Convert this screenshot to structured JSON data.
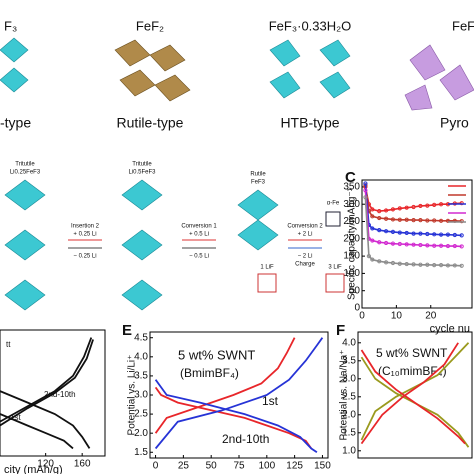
{
  "structures": [
    {
      "formula": "F₃",
      "type": "-type"
    },
    {
      "formula": "FeF₂",
      "type": "Rutile-type"
    },
    {
      "formula": "FeF₃·0.33H₂O",
      "type": "HTB-type"
    },
    {
      "formula": "FeF",
      "type": "Pyro"
    }
  ],
  "scheme": {
    "phases": [
      {
        "name": "Tritutile",
        "formula": "Li0.25FeF3"
      },
      {
        "name": "Tritutile",
        "formula": "Li0.5FeF3"
      },
      {
        "name": "Rutile",
        "formula": "FeF3"
      }
    ],
    "steps": [
      {
        "name": "Insertion 2",
        "forward": "+ 0.25 Li",
        "back": "− 0.25 Li"
      },
      {
        "name": "Conversion 1",
        "forward": "+ 0.5 Li",
        "back": "− 0.5 Li"
      },
      {
        "name": "Conversion 2",
        "forward": "+ 2 Li",
        "back": "− 2 Li",
        "note": "Charge"
      }
    ],
    "fe": "α-Fe",
    "lif": [
      "1 LiF",
      "3 LiF"
    ]
  },
  "chart_data": [
    {
      "type": "line",
      "label": "C",
      "y_label": "Specific capacity/mAhg⁻¹",
      "x_label": "cycle nu",
      "xlim": [
        0,
        32
      ],
      "xticks": [
        0,
        10,
        20
      ],
      "ylim": [
        0,
        370
      ],
      "yticks": [
        0,
        50,
        100,
        150,
        200,
        250,
        300,
        350
      ],
      "x": [
        1,
        2,
        3,
        5,
        7,
        9,
        11,
        13,
        15,
        17,
        19,
        21,
        23,
        25,
        27,
        29
      ],
      "series": [
        {
          "color": "#e8262a",
          "values": [
            350,
            300,
            285,
            280,
            282,
            285,
            288,
            290,
            292,
            295,
            296,
            298,
            300,
            300,
            302,
            303
          ]
        },
        {
          "color": "#c0392b",
          "values": [
            355,
            280,
            265,
            260,
            258,
            256,
            255,
            255,
            254,
            254,
            253,
            253,
            252,
            252,
            252,
            251
          ]
        },
        {
          "color": "#2633d6",
          "values": [
            360,
            240,
            230,
            225,
            222,
            220,
            218,
            217,
            215,
            215,
            214,
            213,
            212,
            212,
            211,
            210
          ]
        },
        {
          "color": "#d22ad0",
          "values": [
            340,
            200,
            195,
            190,
            188,
            186,
            185,
            184,
            183,
            182,
            181,
            180,
            180,
            179,
            179,
            178
          ]
        },
        {
          "color": "#8c8c8c",
          "values": [
            320,
            150,
            140,
            135,
            132,
            130,
            128,
            127,
            126,
            125,
            125,
            124,
            124,
            123,
            123,
            122
          ]
        }
      ]
    },
    {
      "type": "line",
      "x_label": "city (mAh/g)",
      "xlim": [
        70,
        185
      ],
      "xticks": [
        120,
        160
      ],
      "ylim": [
        1.3,
        4.6
      ],
      "annotations": [
        "tt",
        "2nd-10th",
        "1st"
      ],
      "series": [
        {
          "color": "#111111",
          "x": [
            70,
            100,
            130,
            150,
            160,
            168
          ],
          "values": [
            3.0,
            2.7,
            2.4,
            2.1,
            1.8,
            1.5
          ]
        },
        {
          "color": "#111111",
          "x": [
            70,
            100,
            130,
            150,
            162,
            170
          ],
          "values": [
            2.2,
            2.6,
            3.0,
            3.4,
            3.9,
            4.4
          ]
        },
        {
          "color": "#111111",
          "x": [
            70,
            100,
            130,
            152,
            165,
            172
          ],
          "values": [
            2.1,
            2.55,
            2.95,
            3.35,
            3.85,
            4.35
          ]
        },
        {
          "color": "#111111",
          "x": [
            70,
            100,
            120,
            140,
            150
          ],
          "values": [
            2.4,
            2.1,
            1.9,
            1.7,
            1.5
          ]
        }
      ]
    },
    {
      "type": "line",
      "label": "E",
      "y_label": "Potential vs. Li/Li⁺",
      "xlim": [
        -5,
        155
      ],
      "xticks": [
        0,
        25,
        50,
        75,
        100,
        125,
        150
      ],
      "ylim": [
        1.35,
        4.65
      ],
      "yticks": [
        1.5,
        {
          "value": 2,
          "label": "2.0"
        },
        2.5,
        {
          "value": 3,
          "label": "3.0"
        },
        3.5,
        {
          "value": 4,
          "label": "4.0"
        },
        4.5
      ],
      "annotations": [
        "5 wt% SWNT",
        "(BmimBF₄)",
        "1st",
        "2nd-10th"
      ],
      "series": [
        {
          "color": "#e8262a",
          "x": [
            0,
            5,
            20,
            50,
            80,
            100,
            120,
            135,
            140
          ],
          "values": [
            3.2,
            3.0,
            2.8,
            2.6,
            2.4,
            2.2,
            2.0,
            1.8,
            1.6
          ]
        },
        {
          "color": "#e8262a",
          "x": [
            0,
            10,
            40,
            70,
            95,
            110,
            118,
            125
          ],
          "values": [
            2.0,
            2.4,
            2.7,
            3.0,
            3.3,
            3.7,
            4.1,
            4.5
          ]
        },
        {
          "color": "#2633d6",
          "x": [
            0,
            10,
            40,
            80,
            110,
            130,
            140,
            145
          ],
          "values": [
            3.4,
            3.0,
            2.8,
            2.5,
            2.2,
            1.9,
            1.6,
            1.5
          ]
        },
        {
          "color": "#2633d6",
          "x": [
            0,
            20,
            60,
            100,
            120,
            135,
            145,
            150
          ],
          "values": [
            1.6,
            2.3,
            2.6,
            3.0,
            3.4,
            3.9,
            4.3,
            4.5
          ]
        }
      ]
    },
    {
      "type": "line",
      "label": "F",
      "y_label": "Potential vs. Na/Na⁺",
      "xlim": [
        -5,
        160
      ],
      "ylim": [
        0.8,
        4.3
      ],
      "yticks": [
        {
          "value": 1,
          "label": "1.0"
        },
        1.5,
        {
          "value": 2,
          "label": "2.0"
        },
        2.5,
        {
          "value": 3,
          "label": "3.0"
        },
        3.5,
        {
          "value": 4,
          "label": "4.0"
        }
      ],
      "annotations": [
        "5 wt% SWNT",
        "(C₁₀mimBF₄)"
      ],
      "series": [
        {
          "color": "#9a9a1e",
          "x": [
            0,
            20,
            50,
            80,
            110,
            140,
            155
          ],
          "values": [
            3.6,
            3.0,
            2.6,
            2.3,
            2.0,
            1.5,
            1.1
          ]
        },
        {
          "color": "#9a9a1e",
          "x": [
            0,
            20,
            50,
            80,
            110,
            140,
            155
          ],
          "values": [
            1.3,
            2.1,
            2.5,
            2.8,
            3.1,
            3.7,
            4.0
          ]
        },
        {
          "color": "#e8262a",
          "x": [
            0,
            20,
            50,
            80,
            110,
            140,
            150
          ],
          "values": [
            3.8,
            3.2,
            2.7,
            2.3,
            1.9,
            1.4,
            1.2
          ]
        },
        {
          "color": "#e8262a",
          "x": [
            0,
            30,
            60,
            90,
            120,
            140
          ],
          "values": [
            1.2,
            2.0,
            2.5,
            2.9,
            3.4,
            4.0
          ]
        }
      ]
    }
  ]
}
